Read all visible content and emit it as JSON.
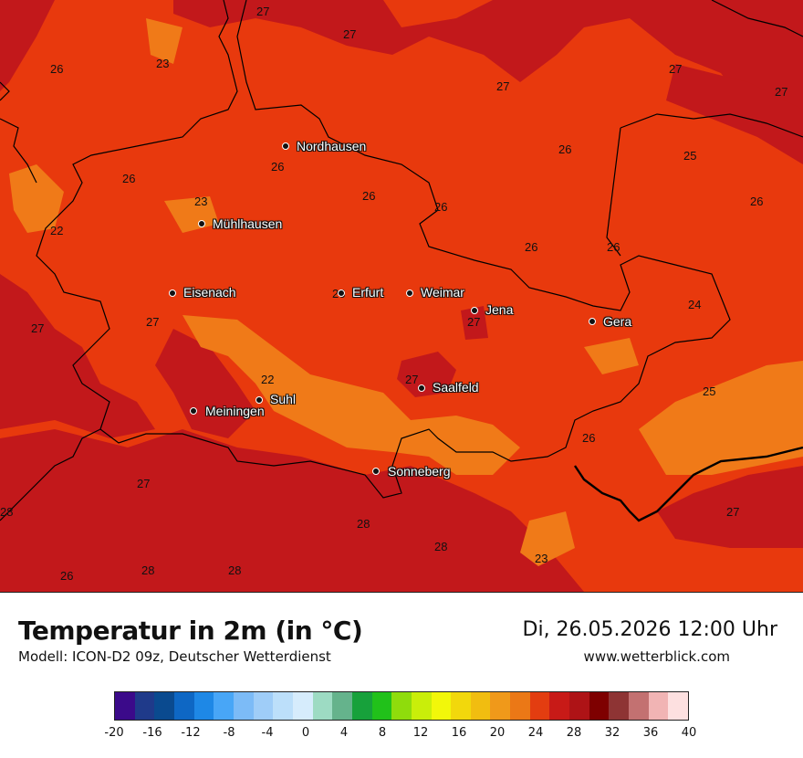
{
  "map": {
    "cities": [
      {
        "name": "Nordhausen"
      },
      {
        "name": "Mühlhausen"
      },
      {
        "name": "Eisenach"
      },
      {
        "name": "Erfurt"
      },
      {
        "name": "Weimar"
      },
      {
        "name": "Jena"
      },
      {
        "name": "Gera"
      },
      {
        "name": "Suhl"
      },
      {
        "name": "Meiningen"
      },
      {
        "name": "Saalfeld"
      },
      {
        "name": "Sonneberg"
      }
    ],
    "temperature_labels": [
      "27",
      "27",
      "23",
      "26",
      "27",
      "27",
      "27",
      "26",
      "25",
      "26",
      "26",
      "26",
      "26",
      "23",
      "26",
      "22",
      "26",
      "26",
      "24",
      "27",
      "27",
      "26",
      "22",
      "27",
      "27",
      "25",
      "26",
      "27",
      "28",
      "28",
      "27",
      "28",
      "23",
      "26",
      "28",
      "28"
    ],
    "colors": {
      "base": "#e8390d",
      "warm": "#c2181b",
      "cool": "#f07a18",
      "borders": "#000000"
    }
  },
  "footer": {
    "title": "Temperatur in 2m (in °C)",
    "subtitle": "Modell: ICON-D2 09z, Deutscher Wetterdienst",
    "datetime": "Di, 26.05.2026 12:00 Uhr",
    "website": "www.wetterblick.com"
  },
  "legend": {
    "colors": [
      "#3b0a8a",
      "#1f3a8a",
      "#0a4a8f",
      "#0e67c4",
      "#1e88e6",
      "#48a6f7",
      "#7cbbf7",
      "#9fcdf8",
      "#bcdffa",
      "#d6ecfc",
      "#9ddbc3",
      "#65b38c",
      "#17a13b",
      "#21c11a",
      "#8fdc0c",
      "#c9ee0a",
      "#f2f70a",
      "#f2d80c",
      "#f1bd10",
      "#f0991a",
      "#eb7816",
      "#e33d10",
      "#c81a17",
      "#ae1316",
      "#7e0000",
      "#8e3434",
      "#c37171",
      "#f1b4b4",
      "#fde0e0"
    ],
    "ticks": [
      "-20",
      "-16",
      "-12",
      "-8",
      "-4",
      "0",
      "4",
      "8",
      "12",
      "16",
      "20",
      "24",
      "28",
      "32",
      "36",
      "40"
    ]
  }
}
